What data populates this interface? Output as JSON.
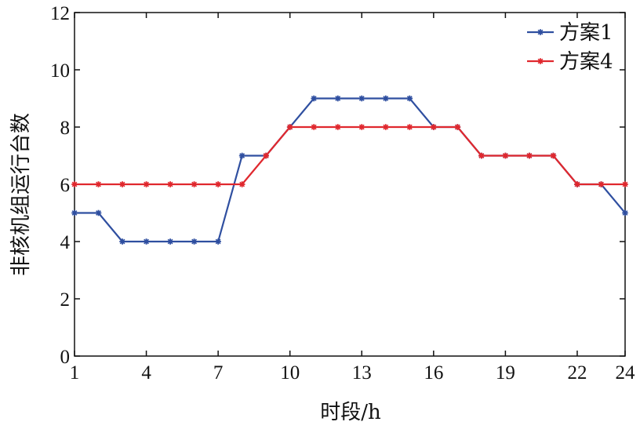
{
  "chart_data": {
    "type": "line",
    "title": "",
    "xlabel": "时段/h",
    "ylabel": "非核机组运行台数",
    "x": [
      1,
      2,
      3,
      4,
      5,
      6,
      7,
      8,
      9,
      10,
      11,
      12,
      13,
      14,
      15,
      16,
      17,
      18,
      19,
      20,
      21,
      22,
      23,
      24
    ],
    "x_ticks": [
      1,
      4,
      7,
      10,
      13,
      16,
      19,
      22,
      24
    ],
    "x_tick_labels": [
      "1",
      "4",
      "7",
      "10",
      "13",
      "16",
      "19",
      "22",
      "24"
    ],
    "y_ticks": [
      0,
      2,
      4,
      6,
      8,
      10,
      12
    ],
    "y_tick_labels": [
      "0",
      "2",
      "4",
      "6",
      "8",
      "10",
      "12"
    ],
    "xlim": [
      1,
      24
    ],
    "ylim": [
      0,
      12
    ],
    "grid": false,
    "legend_position": "top-right",
    "series": [
      {
        "name": "方案1",
        "color": "#2f4fa0",
        "marker": "asterisk",
        "values": [
          5,
          5,
          4,
          4,
          4,
          4,
          4,
          7,
          7,
          8,
          9,
          9,
          9,
          9,
          9,
          8,
          8,
          7,
          7,
          7,
          7,
          6,
          6,
          5
        ]
      },
      {
        "name": "方案4",
        "color": "#e0282e",
        "marker": "asterisk",
        "values": [
          6,
          6,
          6,
          6,
          6,
          6,
          6,
          6,
          7,
          8,
          8,
          8,
          8,
          8,
          8,
          8,
          8,
          7,
          7,
          7,
          7,
          6,
          6,
          6
        ]
      }
    ]
  }
}
